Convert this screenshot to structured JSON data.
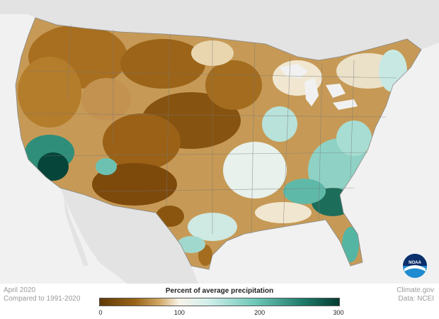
{
  "footer": {
    "date_label": "April 2020",
    "comparison_label": "Compared to 1991-2020",
    "credit_label": "Climate.gov",
    "data_source_label": "Data: NCEI"
  },
  "legend": {
    "title": "Percent of average precipitation",
    "ticks": [
      {
        "label": "0",
        "value": 0
      },
      {
        "label": "100",
        "value": 100
      },
      {
        "label": "200",
        "value": 200
      },
      {
        "label": "300",
        "value": 300
      }
    ],
    "range": [
      0,
      300
    ],
    "colors": {
      "dry_dark": "#7a4a0d",
      "dry": "#b07a2a",
      "dry_light": "#e3c994",
      "neutral": "#f7f1e6",
      "wet_light": "#c9ebe6",
      "wet": "#5fbfae",
      "wet_dark": "#0a4a3e"
    }
  },
  "logo": {
    "text": "NOAA",
    "icon": "noaa-logo-icon"
  },
  "map": {
    "land_color": "#e0e0e0",
    "water_color": "#f1f1f1"
  }
}
